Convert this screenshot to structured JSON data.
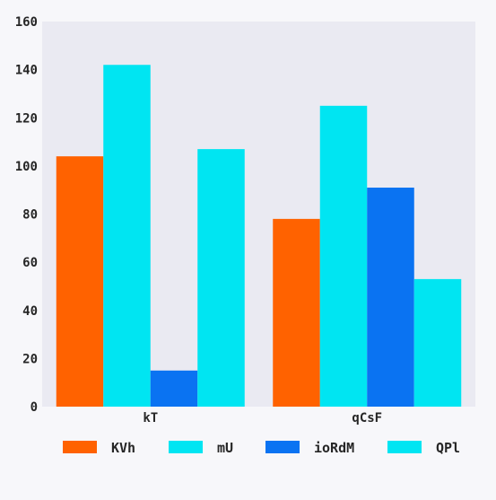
{
  "chart_data": {
    "type": "bar",
    "categories": [
      "kT",
      "qCsF"
    ],
    "series": [
      {
        "name": "KVh",
        "values": [
          104,
          78
        ],
        "color": "#ff6200"
      },
      {
        "name": "mU",
        "values": [
          142,
          125
        ],
        "color": "#00e5f2"
      },
      {
        "name": "ioRdM",
        "values": [
          15,
          91
        ],
        "color": "#0a73f2"
      },
      {
        "name": "QPl",
        "values": [
          107,
          53
        ],
        "color": "#00e5f2"
      }
    ],
    "yticks": [
      0,
      20,
      40,
      60,
      80,
      100,
      120,
      140,
      160
    ],
    "ylim": [
      0,
      160
    ],
    "grid": false,
    "legend_position": "bottom",
    "plot_background": "#eaeaf2",
    "title": "",
    "xlabel": "",
    "ylabel": ""
  }
}
